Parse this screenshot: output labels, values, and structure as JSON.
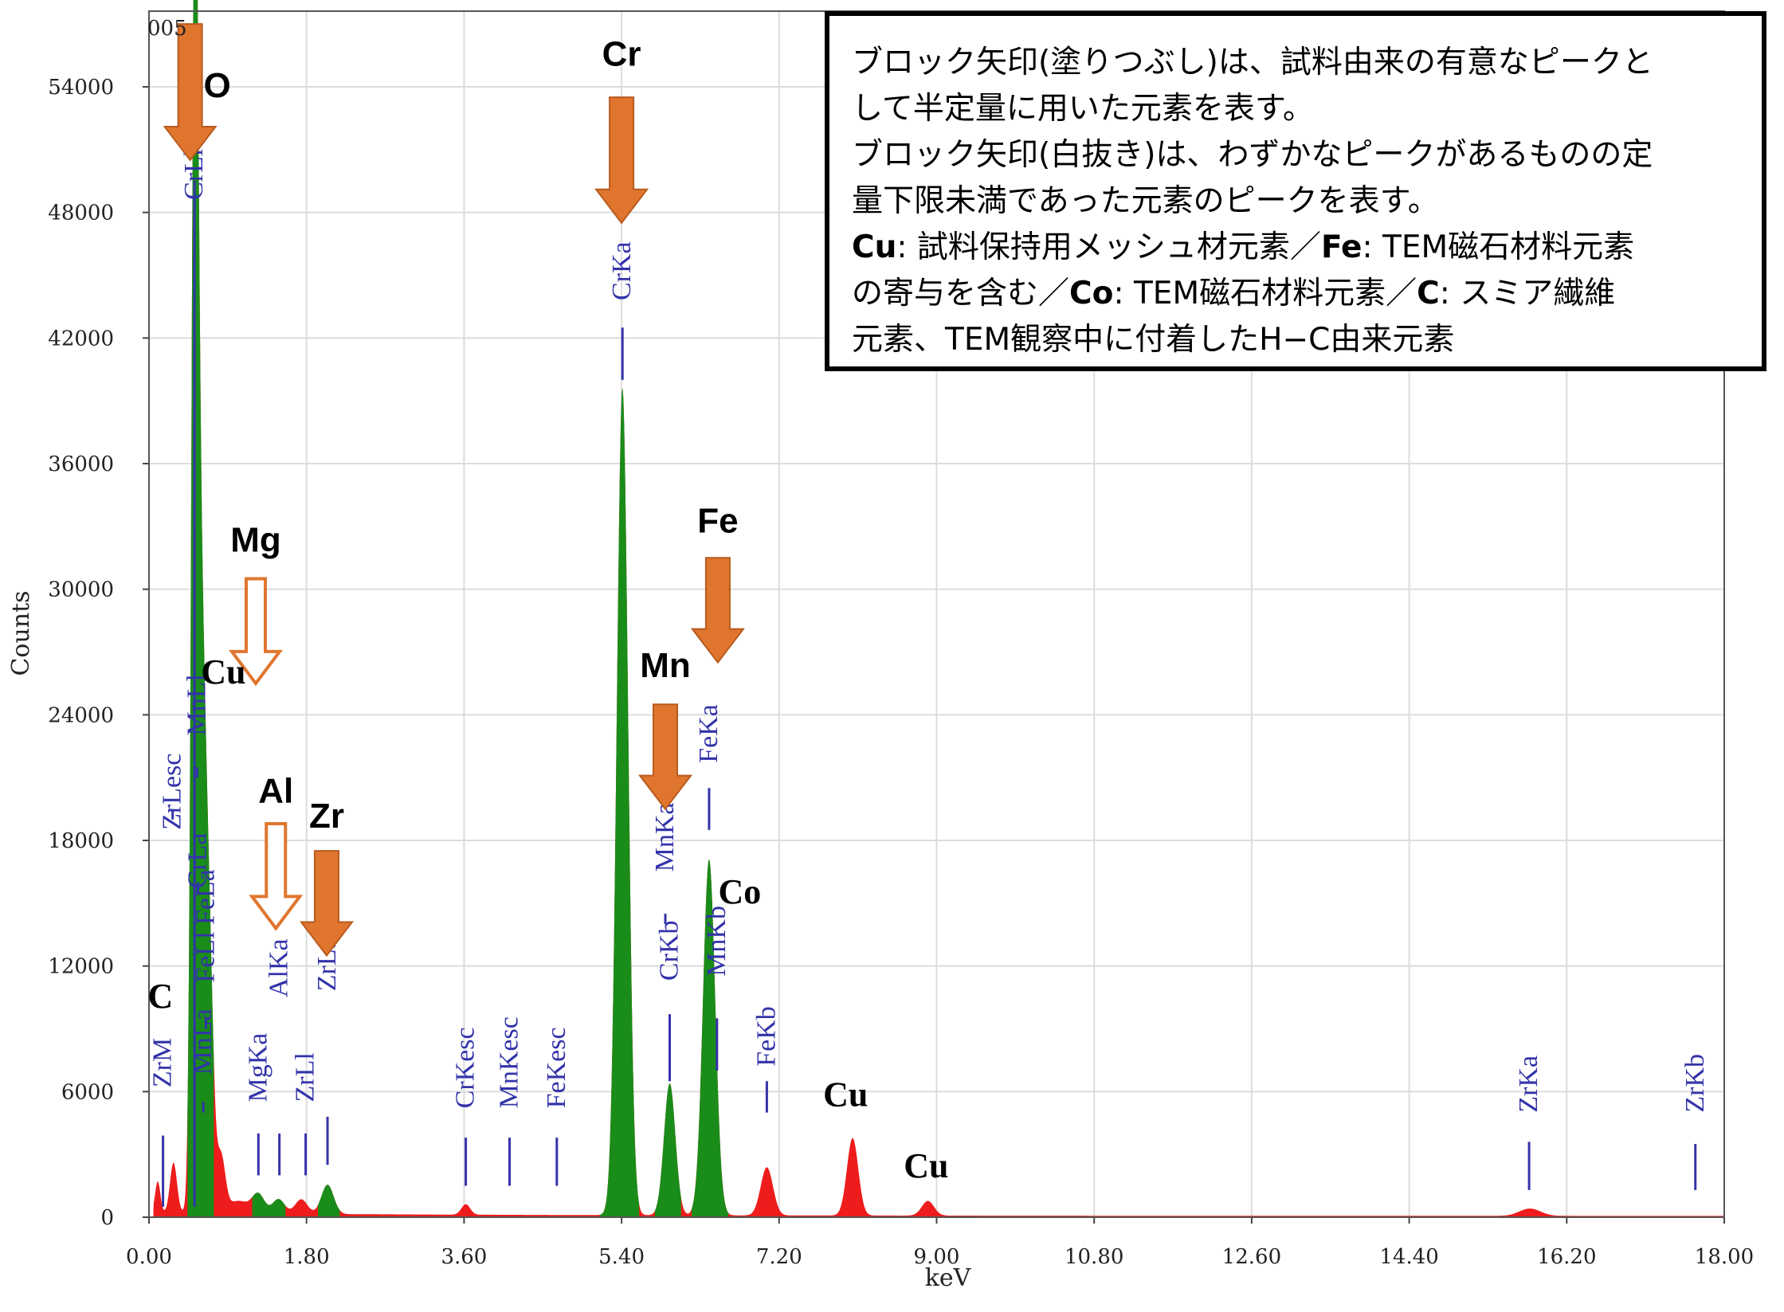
{
  "chart_data": {
    "type": "area",
    "xlabel": "keV",
    "ylabel": "Counts",
    "xlim": [
      0,
      18
    ],
    "ylim": [
      0,
      55000
    ],
    "x_ticks": [
      "0.00",
      "1.80",
      "3.60",
      "5.40",
      "7.20",
      "9.00",
      "10.80",
      "12.60",
      "14.40",
      "16.20",
      "18.00"
    ],
    "y_ticks": [
      "0",
      "6000",
      "12000",
      "18000",
      "24000",
      "30000",
      "36000",
      "42000",
      "48000",
      "54000"
    ],
    "top_left_fragment": "005",
    "grid": true,
    "spectrum_peaks": [
      {
        "x": 0.1,
        "y": 1500,
        "w": 0.03,
        "region": "red"
      },
      {
        "x": 0.28,
        "y": 2400,
        "w": 0.04,
        "region": "red"
      },
      {
        "x": 0.52,
        "y": 46500,
        "w": 0.035,
        "region": "green"
      },
      {
        "x": 0.56,
        "y": 27000,
        "w": 0.05,
        "region": "green"
      },
      {
        "x": 0.64,
        "y": 16000,
        "w": 0.05,
        "region": "green"
      },
      {
        "x": 0.71,
        "y": 6000,
        "w": 0.04,
        "region": "green"
      },
      {
        "x": 0.82,
        "y": 2700,
        "w": 0.05,
        "region": "red"
      },
      {
        "x": 1.02,
        "y": 600,
        "w": 0.12,
        "region": "red"
      },
      {
        "x": 1.25,
        "y": 900,
        "w": 0.07,
        "region": "green"
      },
      {
        "x": 1.48,
        "y": 700,
        "w": 0.07,
        "region": "green"
      },
      {
        "x": 1.74,
        "y": 700,
        "w": 0.07,
        "region": "red"
      },
      {
        "x": 2.04,
        "y": 1400,
        "w": 0.07,
        "region": "green"
      },
      {
        "x": 3.62,
        "y": 500,
        "w": 0.05,
        "region": "red"
      },
      {
        "x": 5.41,
        "y": 39500,
        "w": 0.065,
        "region": "green"
      },
      {
        "x": 5.95,
        "y": 6300,
        "w": 0.065,
        "region": "green"
      },
      {
        "x": 6.4,
        "y": 17000,
        "w": 0.07,
        "region": "green"
      },
      {
        "x": 7.06,
        "y": 2300,
        "w": 0.07,
        "region": "red"
      },
      {
        "x": 8.04,
        "y": 3700,
        "w": 0.065,
        "region": "red"
      },
      {
        "x": 8.9,
        "y": 700,
        "w": 0.07,
        "region": "red"
      },
      {
        "x": 15.78,
        "y": 350,
        "w": 0.12,
        "region": "red"
      }
    ],
    "green_regions": [
      [
        0.44,
        0.74
      ],
      [
        1.18,
        1.56
      ],
      [
        1.93,
        2.18
      ],
      [
        5.15,
        5.6
      ],
      [
        5.78,
        6.08
      ],
      [
        6.2,
        6.62
      ]
    ],
    "colors": {
      "red": "#ee1c1c",
      "green": "#1a8c1a",
      "peak_label": "#3333aa",
      "arrow": "#e0762e",
      "arrow_stroke": "#b85a1e"
    },
    "peak_markers": [
      {
        "label": "ZrM",
        "x": 0.16,
        "y0": 500,
        "y1": 3900,
        "ty": 6200
      },
      {
        "label": "CrLl OKa",
        "x": 0.52,
        "y0": 500,
        "y1": 49500,
        "ty": 48600
      },
      {
        "label": "MnLa",
        "x": 0.62,
        "y0": 5000,
        "y1": 5500,
        "ty": 6800
      },
      {
        "label": "ZrLesc",
        "x": 0.27,
        "y0": 19000,
        "y1": 19500,
        "ty": 18500
      },
      {
        "label": "MnLl",
        "x": 0.55,
        "y0": 21000,
        "y1": 21500,
        "ty": 23000
      },
      {
        "label": "CrLa",
        "x": 0.56,
        "y0": 15500,
        "y1": 16000,
        "ty": 15700
      },
      {
        "label": "FeLl FeLa",
        "x": 0.65,
        "y0": 9000,
        "y1": 9500,
        "ty": 11200
      },
      {
        "label": "MgKa",
        "x": 1.25,
        "y0": 2000,
        "y1": 4000,
        "ty": 5500
      },
      {
        "label": "AlKa",
        "x": 1.49,
        "y0": 2000,
        "y1": 4000,
        "ty": 10500
      },
      {
        "label": "ZrLl",
        "x": 1.79,
        "y0": 2000,
        "y1": 4000,
        "ty": 5500
      },
      {
        "label": "ZrLa",
        "x": 2.04,
        "y0": 2500,
        "y1": 4800,
        "ty": 10800
      },
      {
        "label": "CrKesc",
        "x": 3.62,
        "y0": 1500,
        "y1": 3800,
        "ty": 5200
      },
      {
        "label": "MnKesc",
        "x": 4.12,
        "y0": 1500,
        "y1": 3800,
        "ty": 5200
      },
      {
        "label": "FeKesc",
        "x": 4.66,
        "y0": 1500,
        "y1": 3800,
        "ty": 5200
      },
      {
        "label": "CrKa",
        "x": 5.41,
        "y0": 40000,
        "y1": 42500,
        "ty": 43800
      },
      {
        "label": "CrKb",
        "x": 5.95,
        "y0": 6500,
        "y1": 9700,
        "ty": 11300
      },
      {
        "label": "MnKa",
        "x": 5.9,
        "y0": 14000,
        "y1": 14500,
        "ty": 16500
      },
      {
        "label": "MnKb",
        "x": 6.49,
        "y0": 7000,
        "y1": 9500,
        "ty": 11500
      },
      {
        "label": "FeKa",
        "x": 6.4,
        "y0": 18500,
        "y1": 20500,
        "ty": 21700
      },
      {
        "label": "FeKb",
        "x": 7.06,
        "y0": 5000,
        "y1": 6500,
        "ty": 7200
      },
      {
        "label": "ZrKa",
        "x": 15.77,
        "y0": 1300,
        "y1": 3600,
        "ty": 5000
      },
      {
        "label": "ZrKb",
        "x": 17.67,
        "y0": 1300,
        "y1": 3500,
        "ty": 5000
      }
    ],
    "arrows": [
      {
        "label": "O",
        "x": 0.47,
        "filled": true,
        "ytop": 57000,
        "ybot": 50500,
        "lx": 0.78,
        "ly": 53500,
        "lstyle": "sans"
      },
      {
        "label": "Cr",
        "x": 5.4,
        "filled": true,
        "ytop": 53500,
        "ybot": 47500,
        "lx": 5.4,
        "ly": 55000,
        "lstyle": "sans"
      },
      {
        "label": "Fe",
        "x": 6.5,
        "filled": true,
        "ytop": 31500,
        "ybot": 26500,
        "lx": 6.5,
        "ly": 32700,
        "lstyle": "sans"
      },
      {
        "label": "Mn",
        "x": 5.9,
        "filled": true,
        "ytop": 24500,
        "ybot": 19500,
        "lx": 5.9,
        "ly": 25800,
        "lstyle": "sans"
      },
      {
        "label": "Zr",
        "x": 2.03,
        "filled": true,
        "ytop": 17500,
        "ybot": 12500,
        "lx": 2.03,
        "ly": 18600,
        "lstyle": "sans"
      },
      {
        "label": "Mg",
        "x": 1.22,
        "filled": false,
        "ytop": 30500,
        "ybot": 25500,
        "lx": 1.22,
        "ly": 31800,
        "lstyle": "sans"
      },
      {
        "label": "Al",
        "x": 1.45,
        "filled": false,
        "ytop": 18800,
        "ybot": 13800,
        "lx": 1.45,
        "ly": 19800,
        "lstyle": "sans"
      }
    ],
    "element_labels": [
      {
        "label": "Cu",
        "x": 0.85,
        "y": 25500
      },
      {
        "label": "C",
        "x": 0.13,
        "y": 10000
      },
      {
        "label": "Co",
        "x": 6.75,
        "y": 15000
      },
      {
        "label": "Cu",
        "x": 7.96,
        "y": 5300
      },
      {
        "label": "Cu",
        "x": 8.88,
        "y": 1900
      }
    ]
  },
  "note": {
    "lines": [
      "ブロック矢印(塗りつぶし)は、試料由来の有意なピークと",
      "して半定量に用いた元素を表す。",
      "ブロック矢印(白抜き)は、わずかなピークがあるものの定",
      "量下限未満であった元素のピークを表す。"
    ],
    "line5_b1": "Cu",
    "line5_t1": ": 試料保持用メッシュ材元素／",
    "line5_b2": "Fe",
    "line5_t2": ": TEM磁石材料元素",
    "line6_t1": "の寄与を含む／",
    "line6_b1": "Co",
    "line6_t2": ": TEM磁石材料元素／",
    "line6_b2": "C",
    "line6_t3": ": スミア繊維",
    "line7": "元素、TEM観察中に付着したH−C由来元素"
  }
}
